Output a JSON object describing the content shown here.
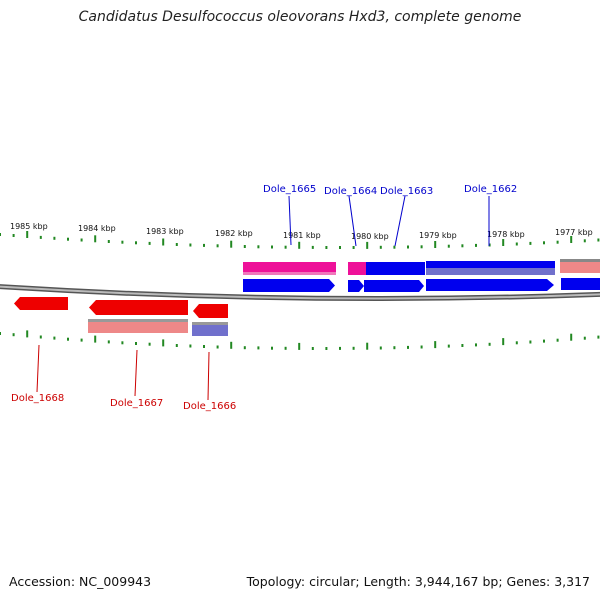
{
  "title": "Candidatus Desulfococcus oleovorans Hxd3, complete genome",
  "footer": {
    "accession": "Accession: NC_009943",
    "topology": "Topology: circular; Length: 3,944,167 bp; Genes: 3,317"
  },
  "colors": {
    "forward_gene": "#0000ee",
    "forward_gene_light": "#7070cc",
    "reverse_gene": "#ee0000",
    "reverse_gene_light": "#ee8888",
    "magenta_gene": "#ee1199",
    "tick": "#228822",
    "backbone": "#888888",
    "label_blue": "#0000cc",
    "label_red": "#cc0000"
  },
  "scale_labels": [
    "1985 kbp",
    "1984 kbp",
    "1983 kbp",
    "1982 kbp",
    "1981 kbp",
    "1980 kbp",
    "1979 kbp",
    "1978 kbp",
    "1977 kbp"
  ],
  "gene_labels_top": [
    "Dole_1665",
    "Dole_1664",
    "Dole_1663",
    "Dole_1662"
  ],
  "gene_labels_bottom": [
    "Dole_1668",
    "Dole_1667",
    "Dole_1666"
  ]
}
